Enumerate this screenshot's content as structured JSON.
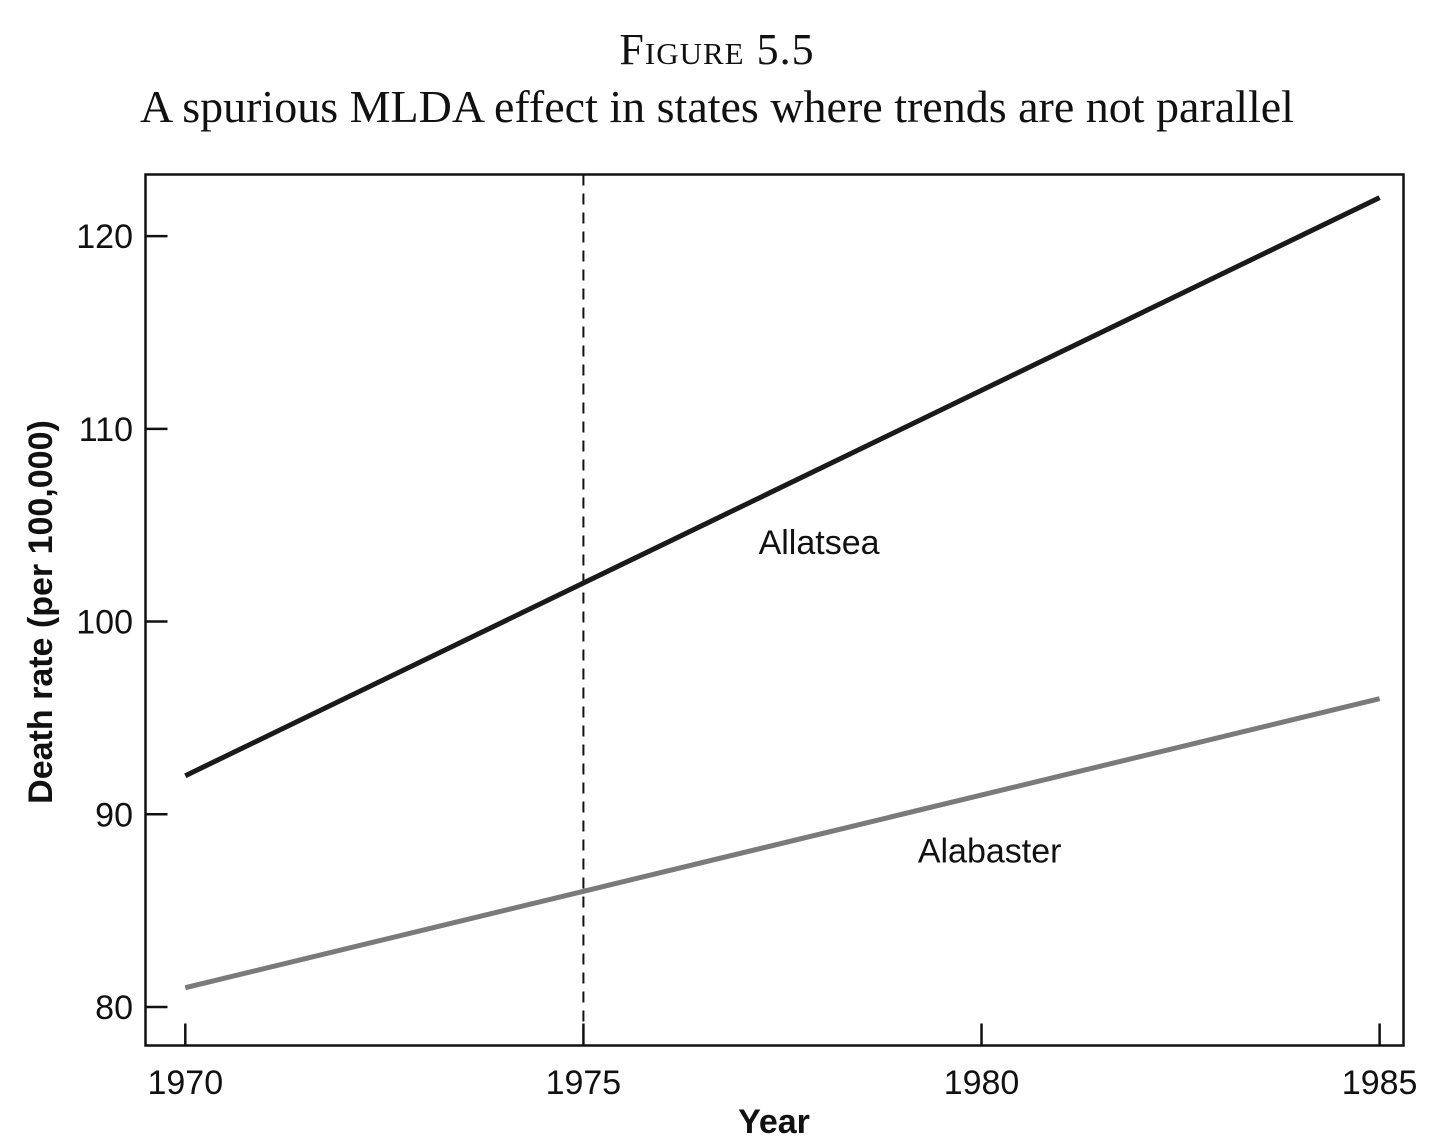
{
  "chart_data": {
    "type": "line",
    "figure_number": "Figure 5.5",
    "title": "A spurious MLDA effect in states where trends are not parallel",
    "xlabel": "Year",
    "ylabel": "Death rate (per 100,000)",
    "xlim": [
      1969.5,
      1985.3
    ],
    "ylim": [
      78,
      123.2
    ],
    "x_ticks": [
      1970,
      1975,
      1980,
      1985
    ],
    "y_ticks": [
      80,
      90,
      100,
      110,
      120
    ],
    "vertical_reference_line": {
      "x": 1975,
      "style": "dashed"
    },
    "series": [
      {
        "name": "Allatsea",
        "x": [
          1970,
          1985
        ],
        "values": [
          92,
          122
        ],
        "color": "#1a1a1a",
        "label_x": 1977.2,
        "label_y": 103.5
      },
      {
        "name": "Alabaster",
        "x": [
          1970,
          1985
        ],
        "values": [
          81,
          96
        ],
        "color": "#7a7a7a",
        "label_x": 1979.2,
        "label_y": 87.5
      }
    ]
  }
}
